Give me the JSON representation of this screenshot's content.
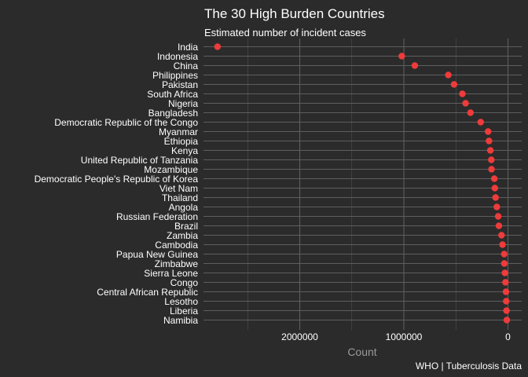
{
  "chart_data": {
    "type": "scatter",
    "title": "The 30 High Burden Countries",
    "subtitle": "Estimated number of incident cases",
    "xlabel": "Count",
    "ylabel": "",
    "caption": "WHO | Tuberculosis Data",
    "x_reversed": true,
    "xlim": [
      0,
      2880000
    ],
    "xticks": [
      2000000,
      1000000,
      0
    ],
    "xtick_labels": [
      "2000000",
      "1000000",
      "0"
    ],
    "grid": true,
    "legend": "none",
    "point_color": "#ee3b3b",
    "colors": {
      "background": "#2b2b2b",
      "gridline": "#5e5e5e",
      "text": "#ffffff",
      "axis_title": "#9a9a9a"
    },
    "categories": [
      "India",
      "Indonesia",
      "China",
      "Philippines",
      "Pakistan",
      "South Africa",
      "Nigeria",
      "Bangladesh",
      "Democratic Republic of the Congo",
      "Myanmar",
      "Ethiopia",
      "Kenya",
      "United Republic of Tanzania",
      "Mozambique",
      "Democratic People's Republic of Korea",
      "Viet Nam",
      "Thailand",
      "Angola",
      "Russian Federation",
      "Brazil",
      "Zambia",
      "Cambodia",
      "Papua New Guinea",
      "Zimbabwe",
      "Sierra Leone",
      "Congo",
      "Central African Republic",
      "Lesotho",
      "Liberia",
      "Namibia"
    ],
    "values": [
      2790000,
      1020000,
      895000,
      573000,
      518000,
      438000,
      407000,
      360000,
      262000,
      191000,
      182000,
      169000,
      160000,
      158000,
      131000,
      126000,
      119000,
      107000,
      94000,
      87000,
      62000,
      52000,
      36000,
      35000,
      29000,
      24000,
      19000,
      17000,
      14000,
      11000
    ]
  }
}
